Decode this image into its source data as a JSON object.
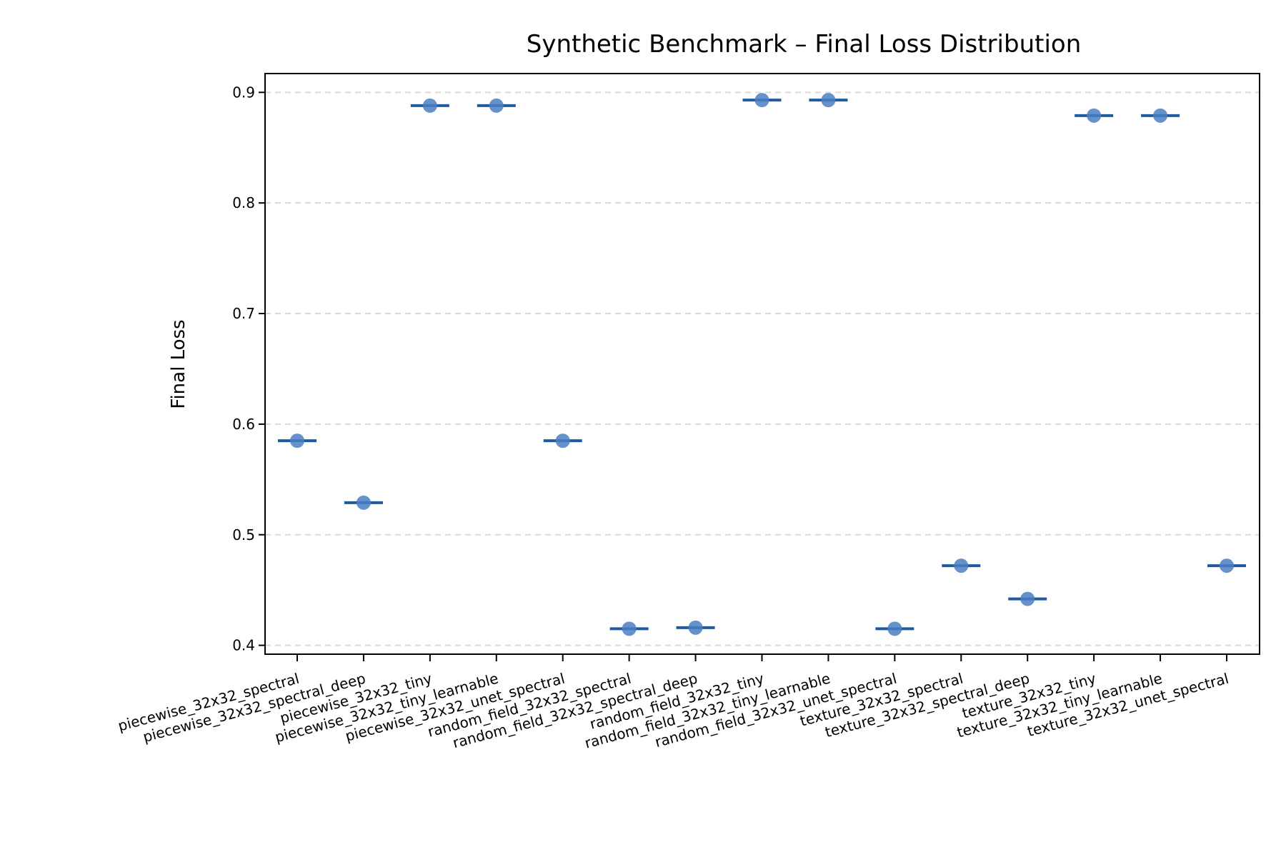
{
  "chart_data": {
    "type": "scatter",
    "title": "Synthetic Benchmark – Final Loss Distribution",
    "xlabel": "",
    "ylabel": "Final Loss",
    "ylim": [
      0.392,
      0.917
    ],
    "yticks": [
      0.4,
      0.5,
      0.6,
      0.7,
      0.8,
      0.9
    ],
    "grid": "y-dashed",
    "categories": [
      "piecewise_32x32_spectral",
      "piecewise_32x32_spectral_deep",
      "piecewise_32x32_tiny",
      "piecewise_32x32_tiny_learnable",
      "piecewise_32x32_unet_spectral",
      "random_field_32x32_spectral",
      "random_field_32x32_spectral_deep",
      "random_field_32x32_tiny",
      "random_field_32x32_tiny_learnable",
      "random_field_32x32_unet_spectral",
      "texture_32x32_spectral",
      "texture_32x32_spectral_deep",
      "texture_32x32_tiny",
      "texture_32x32_tiny_learnable",
      "texture_32x32_unet_spectral"
    ],
    "values": [
      0.585,
      0.529,
      0.888,
      0.888,
      0.585,
      0.415,
      0.416,
      0.893,
      0.893,
      0.415,
      0.472,
      0.442,
      0.879,
      0.879,
      0.472
    ],
    "colors": {
      "point": "#4a7fc1",
      "median": "#1f5aa0",
      "grid": "#d9d9d9"
    }
  }
}
